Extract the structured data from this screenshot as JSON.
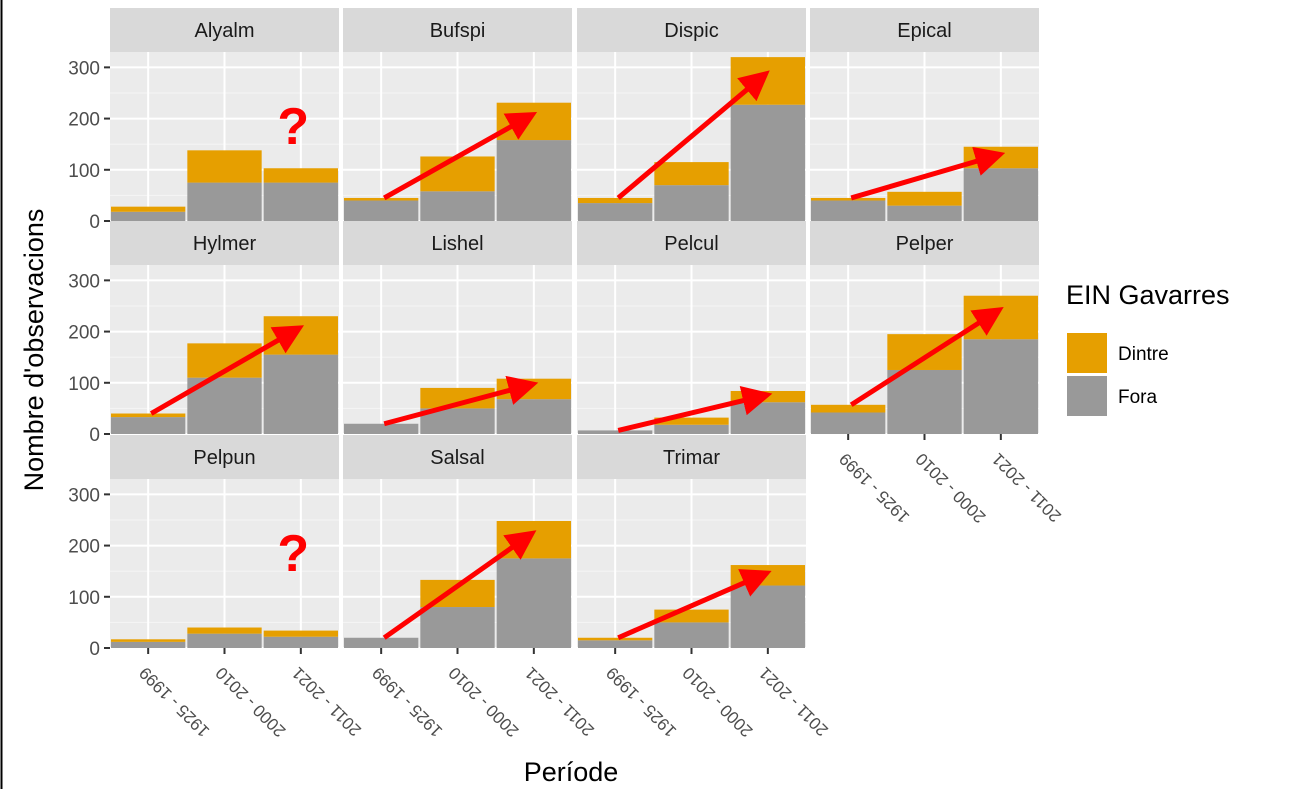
{
  "chart_data": {
    "type": "bar",
    "stacked": true,
    "facet_by": "species",
    "facets": [
      "Alyalm",
      "Bufspi",
      "Dispic",
      "Epical",
      "Hylmer",
      "Lishel",
      "Pelcul",
      "Pelper",
      "Pelpun",
      "Salsal",
      "Trimar"
    ],
    "categories": [
      "1925 - 1999",
      "2000 - 2010",
      "2011 - 2021"
    ],
    "xlabel": "Període",
    "ylabel": "Nombre d'observacions",
    "ylim": [
      0,
      330
    ],
    "yticks": [
      0,
      100,
      200,
      300
    ],
    "ytick_labels": [
      "0",
      "100",
      "200",
      "300"
    ],
    "grid": true,
    "legend": {
      "title": "EIN Gavarres",
      "position": "right",
      "items": [
        {
          "label": "Dintre",
          "color": "#E69F00"
        },
        {
          "label": "Fora",
          "color": "#999999"
        }
      ]
    },
    "series": [
      {
        "name": "Fora",
        "color": "#999999",
        "values": {
          "Alyalm": [
            18,
            75,
            75
          ],
          "Bufspi": [
            40,
            58,
            158
          ],
          "Dispic": [
            35,
            70,
            227
          ],
          "Epical": [
            40,
            30,
            103
          ],
          "Hylmer": [
            33,
            110,
            155
          ],
          "Lishel": [
            20,
            50,
            68
          ],
          "Pelcul": [
            7,
            18,
            62
          ],
          "Pelper": [
            42,
            125,
            185
          ],
          "Pelpun": [
            12,
            28,
            22
          ],
          "Salsal": [
            20,
            80,
            175
          ],
          "Trimar": [
            15,
            50,
            122
          ]
        }
      },
      {
        "name": "Dintre",
        "color": "#E69F00",
        "values": {
          "Alyalm": [
            10,
            63,
            28
          ],
          "Bufspi": [
            5,
            68,
            73
          ],
          "Dispic": [
            10,
            45,
            93
          ],
          "Epical": [
            5,
            27,
            42
          ],
          "Hylmer": [
            7,
            67,
            75
          ],
          "Lishel": [
            0,
            40,
            40
          ],
          "Pelcul": [
            0,
            14,
            22
          ],
          "Pelper": [
            15,
            70,
            85
          ],
          "Pelpun": [
            5,
            12,
            12
          ],
          "Salsal": [
            0,
            53,
            73
          ],
          "Trimar": [
            5,
            25,
            40
          ]
        }
      }
    ],
    "annotations": [
      {
        "type": "question-mark",
        "facet": "Alyalm",
        "text": "?"
      },
      {
        "type": "question-mark",
        "facet": "Pelpun",
        "text": "?"
      },
      {
        "type": "trend-arrow",
        "color": "#ff0000",
        "facets": [
          "Bufspi",
          "Dispic",
          "Epical",
          "Hylmer",
          "Lishel",
          "Pelcul",
          "Pelper",
          "Salsal",
          "Trimar"
        ]
      }
    ]
  }
}
